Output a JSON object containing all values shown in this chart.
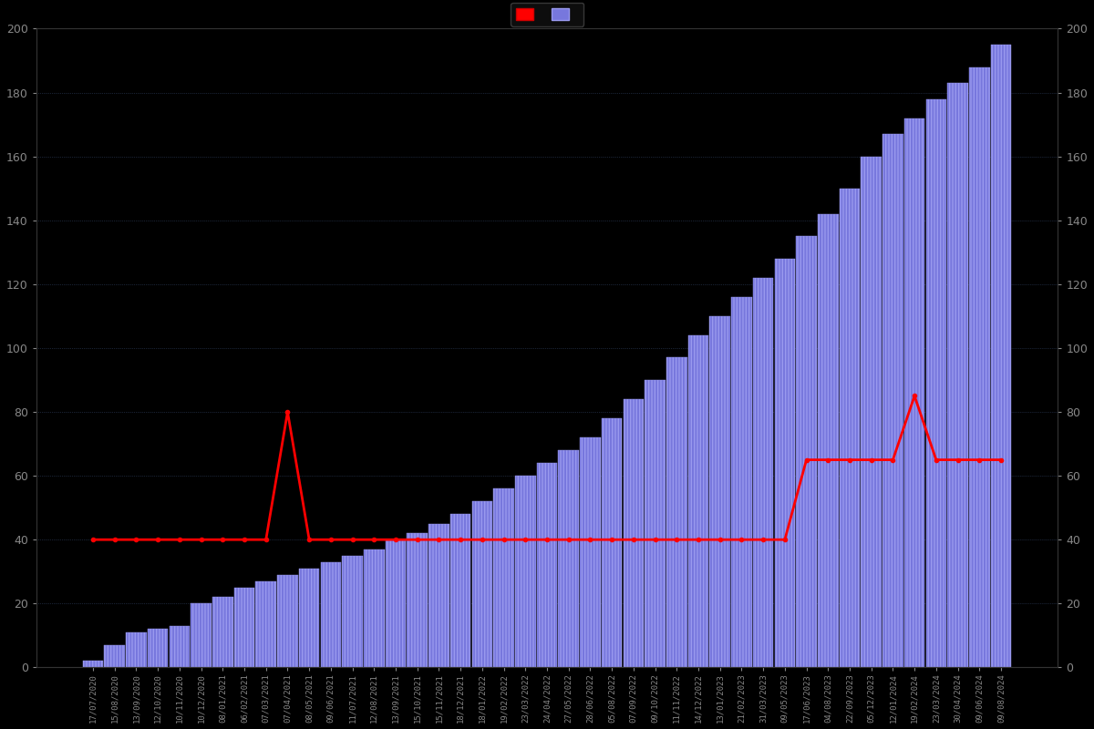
{
  "background_color": "#000000",
  "bar_color": "#7777dd",
  "bar_edge_color": "#9999ee",
  "line_color": "#ff0000",
  "tick_color": "#888888",
  "grid_color": "#333333",
  "ylim": [
    0,
    200
  ],
  "yticks": [
    0,
    20,
    40,
    60,
    80,
    100,
    120,
    140,
    160,
    180,
    200
  ],
  "dates": [
    "17/07/2020",
    "15/08/2020",
    "13/09/2020",
    "12/10/2020",
    "10/11/2020",
    "10/12/2020",
    "08/01/2021",
    "06/02/2021",
    "07/03/2021",
    "07/04/2021",
    "08/05/2021",
    "09/06/2021",
    "11/07/2021",
    "12/08/2021",
    "13/09/2021",
    "15/10/2021",
    "15/11/2021",
    "18/12/2021",
    "18/01/2022",
    "19/02/2022",
    "23/03/2022",
    "24/04/2022",
    "27/05/2022",
    "28/06/2022",
    "05/08/2022",
    "07/09/2022",
    "09/10/2022",
    "11/11/2022",
    "14/12/2022",
    "13/01/2023",
    "21/02/2023",
    "31/03/2023",
    "09/05/2023",
    "17/06/2023",
    "04/08/2023",
    "22/09/2023",
    "05/12/2023",
    "12/01/2024",
    "19/02/2024",
    "23/03/2024",
    "30/04/2024",
    "09/06/2024",
    "09/08/2024"
  ],
  "bar_values": [
    2,
    7,
    11,
    12,
    13,
    20,
    22,
    25,
    27,
    29,
    31,
    33,
    35,
    37,
    40,
    42,
    45,
    48,
    52,
    56,
    60,
    64,
    68,
    72,
    78,
    84,
    90,
    97,
    104,
    110,
    116,
    122,
    128,
    135,
    142,
    150,
    160,
    167,
    172,
    178,
    183,
    188,
    195
  ],
  "line_values": [
    40,
    40,
    40,
    40,
    40,
    40,
    40,
    40,
    40,
    80,
    40,
    40,
    40,
    40,
    40,
    40,
    40,
    40,
    40,
    40,
    40,
    40,
    40,
    40,
    40,
    40,
    40,
    40,
    40,
    40,
    40,
    40,
    40,
    65,
    65,
    65,
    65,
    65,
    85,
    65,
    65,
    65,
    65
  ],
  "grid_dotted_color": "#222244"
}
